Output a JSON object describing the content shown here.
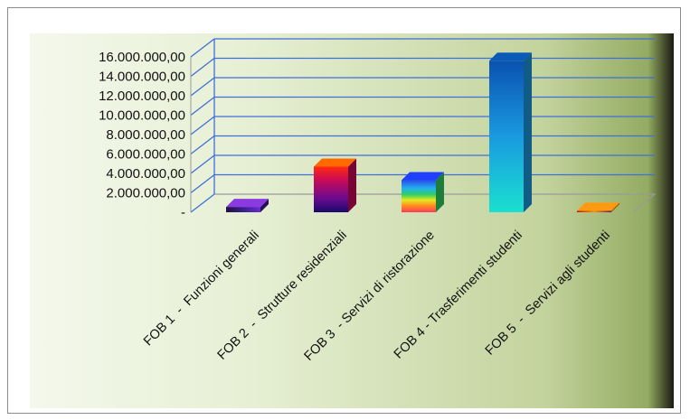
{
  "chart_data": {
    "type": "bar",
    "three_d": true,
    "categories": [
      "FOB 1  -  Funzioni generali",
      "FOB 2  -  Strutture residenziali",
      "FOB 3  - Servizi di ristorazione",
      "FOB 4 - Trasferimenti studenti",
      "FOB 5  -  Servizi agli studenti"
    ],
    "values": [
      550000,
      4700000,
      3300000,
      15600000,
      150000
    ],
    "ylim": [
      0,
      16000000
    ],
    "y_ticks": [
      0,
      2000000,
      4000000,
      6000000,
      8000000,
      10000000,
      12000000,
      14000000,
      16000000
    ],
    "y_tick_labels": [
      "-",
      "2.000.000,00",
      "4.000.000,00",
      "6.000.000,00",
      "8.000.000,00",
      "10.000.000,00",
      "12.000.000,00",
      "14.000.000,00",
      "16.000.000,00"
    ],
    "grid": true,
    "title": "",
    "xlabel": "",
    "ylabel": "",
    "legend": "none",
    "colors": {
      "gridline": "#3f6fd8",
      "plot_background_light": "#f3f7ea",
      "plot_background_dark": "#8ea65c"
    }
  }
}
